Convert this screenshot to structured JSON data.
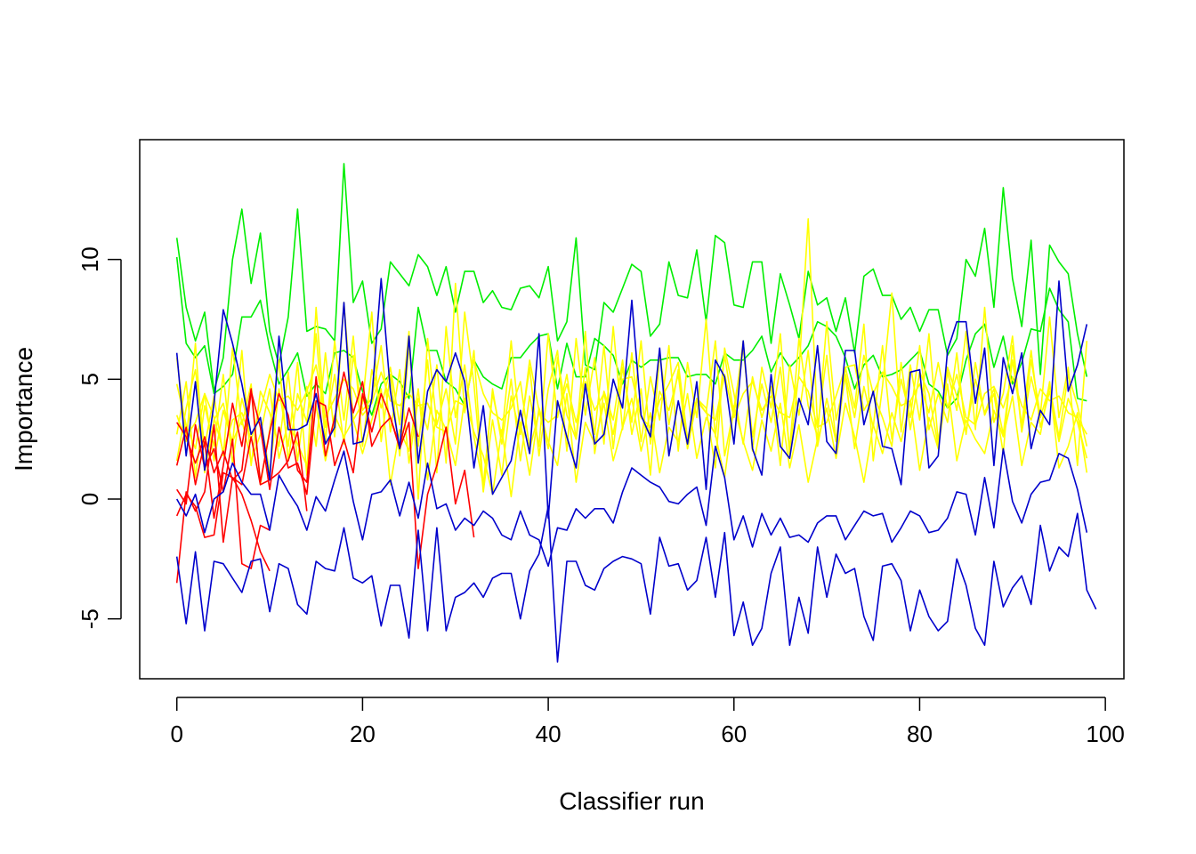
{
  "chart_data": {
    "type": "line",
    "title": "",
    "xlabel": "Classifier run",
    "ylabel": "Importance",
    "xlim": [
      -4,
      102
    ],
    "ylim": [
      -7.5,
      15
    ],
    "x_ticks": [
      0,
      20,
      40,
      60,
      80,
      100
    ],
    "y_ticks": [
      -5,
      0,
      5,
      10
    ],
    "x_tick_labels": [
      "0",
      "20",
      "40",
      "60",
      "80",
      "100"
    ],
    "y_tick_labels": [
      "-5",
      "0",
      "5",
      "10"
    ],
    "grid": false,
    "legend": "none",
    "colors": {
      "green": "#00ee00",
      "yellow": "#ffff00",
      "red": "#ff0000",
      "blue": "#0000cc"
    },
    "series": [
      {
        "color": "green",
        "values": [
          10.9,
          8.0,
          6.6,
          7.8,
          4.5,
          5.9,
          10.0,
          12.1,
          9.0,
          11.1,
          7.0,
          5.6,
          7.6,
          12.1,
          7.0,
          7.2,
          7.1,
          6.6,
          14.0,
          8.2,
          9.1,
          6.5,
          7.1,
          9.9,
          9.4,
          8.9,
          10.2,
          9.7,
          8.5,
          9.7,
          7.8,
          9.5,
          9.5,
          8.2,
          8.7,
          8.0,
          7.9,
          8.8,
          8.9,
          8.4,
          9.7,
          6.6,
          7.4,
          10.9,
          5.6,
          5.4,
          8.2,
          7.8,
          8.8,
          9.8,
          9.5,
          6.8,
          7.3,
          9.9,
          8.5,
          8.4,
          10.4,
          7.4,
          11.0,
          10.7,
          8.1,
          8.0,
          9.9,
          9.9,
          6.5,
          9.4,
          8.1,
          6.7,
          9.5,
          8.1,
          8.4,
          7.0,
          8.4,
          6.1,
          9.3,
          9.6,
          8.5,
          8.5,
          7.5,
          8.0,
          7.0,
          7.9,
          7.9,
          6.0,
          6.7,
          10.0,
          9.3,
          11.3,
          8.0,
          13.0,
          9.2,
          7.2,
          10.8,
          5.2,
          10.6,
          9.9,
          9.4,
          6.9,
          5.1
        ]
      },
      {
        "color": "green",
        "values": [
          10.1,
          6.5,
          5.9,
          6.4,
          4.4,
          4.7,
          5.2,
          7.6,
          7.6,
          8.3,
          6.3,
          4.8,
          5.4,
          6.1,
          4.3,
          4.8,
          4.4,
          6.1,
          6.2,
          5.9,
          4.5,
          3.5,
          4.8,
          5.2,
          4.9,
          4.2,
          8.0,
          6.2,
          6.2,
          4.9,
          4.6,
          3.9,
          5.8,
          5.1,
          4.8,
          4.6,
          5.9,
          5.9,
          6.4,
          6.8,
          6.9,
          4.6,
          6.5,
          5.1,
          5.1,
          6.7,
          6.4,
          6.0,
          4.8,
          5.8,
          5.5,
          5.8,
          5.8,
          5.9,
          5.9,
          5.1,
          5.2,
          5.2,
          4.8,
          6.1,
          5.8,
          5.8,
          6.2,
          6.8,
          5.3,
          6.1,
          5.5,
          5.9,
          6.4,
          7.4,
          7.2,
          6.8,
          5.9,
          4.6,
          5.6,
          6.0,
          5.1,
          5.2,
          5.4,
          5.8,
          6.2,
          4.8,
          4.5,
          3.8,
          4.2,
          5.8,
          6.9,
          7.3,
          5.5,
          6.8,
          4.8,
          5.7,
          7.1,
          7.0,
          8.8,
          7.9,
          7.4,
          4.2,
          4.1
        ]
      },
      {
        "color": "yellow",
        "values": [
          4.8,
          3.1,
          2.1,
          4.4,
          3.4,
          2.0,
          3.3,
          3.6,
          2.5,
          3.7,
          5.2,
          4.1,
          4.3,
          3.7,
          4.5,
          5.6,
          3.4,
          4.2,
          5.0,
          4.6,
          3.5,
          4.0,
          5.3,
          4.1,
          3.9,
          4.4,
          3.9,
          4.0,
          3.0,
          2.8,
          4.1,
          3.9,
          5.8,
          4.4,
          3.6,
          3.3,
          3.8,
          4.9,
          2.1,
          3.6,
          3.2,
          3.5,
          4.8,
          3.2,
          4.9,
          3.7,
          4.4,
          2.7,
          5.0,
          5.1,
          3.4,
          3.0,
          4.1,
          4.8,
          5.7,
          2.5,
          4.2,
          3.6,
          3.3,
          5.2,
          3.4,
          4.4,
          4.9,
          3.7,
          4.3,
          3.6,
          3.4,
          5.1,
          4.5,
          3.0,
          3.2,
          4.3,
          5.5,
          5.6,
          3.7,
          4.4,
          5.3,
          4.7,
          3.9,
          4.1,
          4.8,
          3.6,
          5.7,
          3.8,
          5.2,
          3.4,
          3.1,
          4.4,
          4.7,
          3.8,
          5.1,
          3.9,
          3.3,
          4.6,
          4.1,
          4.3,
          3.6,
          3.4,
          2.7
        ]
      },
      {
        "color": "yellow",
        "values": [
          3.5,
          2.4,
          6.5,
          1.1,
          3.3,
          4.0,
          2.3,
          6.2,
          1.4,
          4.5,
          3.6,
          2.2,
          5.3,
          1.6,
          4.7,
          2.2,
          6.1,
          2.6,
          8.2,
          3.3,
          4.0,
          7.8,
          2.4,
          5.2,
          1.8,
          6.4,
          2.2,
          5.8,
          1.1,
          7.2,
          3.4,
          5.6,
          2.6,
          0.6,
          4.4,
          2.6,
          6.6,
          2.8,
          5.5,
          1.8,
          4.6,
          6.2,
          2.0,
          6.7,
          3.5,
          5.9,
          2.3,
          7.2,
          2.9,
          6.1,
          2.4,
          5.1,
          3.3,
          6.4,
          2.0,
          5.7,
          3.4,
          7.5,
          2.6,
          6.0,
          3.5,
          6.6,
          2.0,
          5.5,
          3.8,
          6.9,
          1.8,
          5.3,
          11.7,
          3.0,
          6.0,
          2.4,
          5.5,
          3.8,
          7.3,
          1.6,
          4.7,
          8.6,
          2.8,
          5.6,
          3.3,
          6.9,
          2.4,
          5.3,
          3.7,
          7.0,
          2.9,
          8.0,
          3.2,
          4.4,
          6.8,
          2.8,
          5.8,
          3.5,
          7.6,
          3.4,
          5.5,
          1.4,
          6.6
        ]
      },
      {
        "color": "yellow",
        "values": [
          2.7,
          4.9,
          0.9,
          3.9,
          2.2,
          5.2,
          1.5,
          4.2,
          2.7,
          3.4,
          1.1,
          4.6,
          2.2,
          5.7,
          1.0,
          8.0,
          3.0,
          5.2,
          2.3,
          6.0,
          3.7,
          4.2,
          6.4,
          2.8,
          5.4,
          1.5,
          4.2,
          2.9,
          5.6,
          1.5,
          9.0,
          3.6,
          6.2,
          0.4,
          4.6,
          2.3,
          5.0,
          1.6,
          4.3,
          2.2,
          6.9,
          3.4,
          5.2,
          2.5,
          7.0,
          1.9,
          4.5,
          3.3,
          5.8,
          2.7,
          4.6,
          1.0,
          6.1,
          3.1,
          5.4,
          2.1,
          4.1,
          3.6,
          6.6,
          1.8,
          3.8,
          6.3,
          2.6,
          4.8,
          3.2,
          5.5,
          2.1,
          6.7,
          3.9,
          2.6,
          7.4,
          3.3,
          5.1,
          2.1,
          4.7,
          3.0,
          6.4,
          2.5,
          5.0,
          3.4,
          6.4,
          2.9,
          4.4,
          3.2,
          6.1,
          2.7,
          5.7,
          3.5,
          4.4,
          1.9,
          6.4,
          2.8,
          5.1,
          3.4,
          4.7,
          2.6,
          5.2,
          3.9,
          2.2
        ]
      },
      {
        "color": "yellow",
        "values": [
          1.6,
          3.8,
          5.4,
          2.2,
          4.3,
          1.8,
          6.3,
          3.1,
          4.8,
          0.6,
          2.9,
          5.8,
          1.6,
          4.4,
          3.2,
          6.9,
          2.4,
          6.6,
          3.3,
          6.8,
          2.2,
          5.4,
          3.8,
          5.5,
          3.1,
          7.0,
          0.0,
          6.7,
          3.1,
          4.6,
          2.3,
          7.8,
          4.8,
          0.3,
          3.3,
          1.0,
          4.3,
          2.7,
          5.8,
          3.7,
          2.1,
          5.9,
          3.5,
          2.5,
          5.5,
          2.7,
          6.4,
          2.1,
          5.5,
          3.2,
          6.6,
          2.3,
          4.5,
          3.7,
          5.2,
          2.1,
          4.2,
          3.8,
          1.3,
          6.3,
          4.4,
          2.3,
          5.1,
          3.4,
          4.7,
          1.4,
          5.6,
          3.5,
          6.2,
          2.2,
          4.2,
          2.4,
          5.2,
          3.4,
          6.0,
          4.4,
          3.4,
          2.2,
          5.7,
          2.9,
          5.3,
          4.4,
          2.2,
          5.5,
          4.3,
          2.8,
          5.0,
          3.6,
          4.6,
          2.7,
          5.8,
          3.1,
          6.2,
          3.0,
          4.5,
          2.4,
          4.2,
          3.2,
          1.7
        ]
      },
      {
        "color": "yellow",
        "values": [
          5.9,
          2.6,
          3.2,
          4.4,
          1.6,
          3.7,
          2.4,
          3.3,
          1.6,
          2.7,
          4.6,
          1.7,
          3.2,
          2.3,
          1.4,
          3.9,
          1.6,
          3.5,
          2.6,
          3.3,
          1.9,
          3.3,
          4.6,
          0.6,
          2.9,
          2.0,
          4.6,
          0.8,
          3.7,
          2.9,
          1.4,
          4.2,
          2.8,
          1.8,
          0.2,
          2.9,
          0.1,
          3.2,
          1.0,
          3.8,
          2.4,
          1.4,
          4.4,
          0.7,
          3.2,
          2.3,
          4.0,
          1.6,
          3.0,
          4.2,
          2.0,
          3.6,
          1.1,
          3.0,
          2.4,
          4.4,
          1.7,
          3.4,
          2.7,
          0.9,
          3.9,
          2.4,
          1.2,
          3.3,
          2.0,
          4.0,
          1.3,
          3.1,
          0.7,
          2.5,
          3.8,
          1.7,
          4.0,
          2.6,
          0.7,
          3.1,
          1.9,
          3.6,
          2.4,
          4.1,
          1.2,
          3.4,
          2.1,
          4.8,
          1.6,
          3.3,
          2.5,
          1.9,
          3.7,
          2.6,
          4.3,
          1.4,
          3.2,
          2.7,
          4.9,
          1.3,
          2.2,
          3.6,
          1.1
        ]
      },
      {
        "color": "red",
        "values": [
          1.4,
          3.0,
          0.6,
          2.4,
          -0.8,
          1.4,
          4.0,
          2.2,
          4.6,
          0.7,
          2.8,
          4.4,
          3.5,
          1.2,
          0.7,
          5.1,
          1.8,
          3.4,
          5.3,
          3.6,
          4.9,
          2.2,
          3.0,
          3.4,
          2.1,
          3.2,
          -2.9,
          0.2,
          1.4,
          3.0,
          -0.2,
          1.2,
          -1.6
        ]
      },
      {
        "color": "red",
        "values": [
          3.2,
          2.6,
          1.5,
          2.6,
          1.1,
          2.0,
          0.8,
          1.2,
          4.5,
          3.0,
          0.4,
          3.0,
          1.3,
          1.5,
          0.2,
          4.1,
          3.9,
          1.4,
          2.5,
          1.1,
          4.4,
          2.8,
          4.4,
          3.4,
          2.2,
          3.8,
          2.6
        ]
      },
      {
        "color": "red",
        "values": [
          -0.7,
          0.2,
          -0.3,
          -1.6,
          -1.5,
          1.1,
          0.9,
          0.6,
          2.6,
          0.6,
          0.8,
          1.1,
          1.6,
          2.8,
          -0.5
        ]
      },
      {
        "color": "red",
        "values": [
          -3.5,
          0.3,
          -0.5,
          0.3,
          3.1,
          -1.8,
          0.9,
          0.2,
          -0.9,
          -2.2,
          -3.0
        ]
      },
      {
        "color": "red",
        "values": [
          0.4,
          -0.2,
          3.1,
          1.3,
          2.1,
          0.3,
          2.5,
          -2.7,
          -2.9,
          -1.1,
          -1.3
        ]
      },
      {
        "color": "blue",
        "values": [
          6.1,
          1.8,
          4.9,
          1.2,
          4.0,
          7.9,
          6.5,
          4.8,
          2.7,
          3.4,
          0.8,
          6.8,
          2.9,
          2.9,
          3.1,
          4.4,
          2.3,
          3.0,
          8.2,
          2.3,
          2.4,
          4.2,
          9.2,
          4.5,
          2.1,
          6.8,
          1.5,
          4.5,
          5.4,
          4.9,
          6.1,
          4.9,
          1.3,
          3.9,
          0.2,
          0.9,
          1.6,
          3.7,
          1.9,
          6.9,
          -0.8,
          4.1,
          2.6,
          1.3,
          4.8,
          2.3,
          2.7,
          5.0,
          3.8,
          8.3,
          3.5,
          2.6,
          6.3,
          1.8,
          4.1,
          2.3,
          4.9,
          0.4,
          5.8,
          5.1,
          2.3,
          6.6,
          2.1,
          1.0,
          5.2,
          2.2,
          1.7,
          4.2,
          3.1,
          6.4,
          2.4,
          1.9,
          6.2,
          6.2,
          3.1,
          4.5,
          2.2,
          2.1,
          0.6,
          5.3,
          5.4,
          1.3,
          1.8,
          6.2,
          7.4,
          7.4,
          4.0,
          6.3,
          1.4,
          5.9,
          4.4,
          6.1,
          2.1,
          3.7,
          3.1,
          9.1,
          4.5,
          5.6,
          7.3
        ]
      },
      {
        "color": "blue",
        "values": [
          0.0,
          -0.7,
          0.2,
          -1.4,
          0.0,
          0.3,
          1.5,
          0.7,
          0.2,
          0.2,
          -1.3,
          1.0,
          0.3,
          -0.3,
          -1.3,
          0.1,
          -0.5,
          0.8,
          2.0,
          -0.1,
          -1.7,
          0.2,
          0.3,
          0.8,
          -0.7,
          0.7,
          -0.8,
          1.5,
          -0.4,
          -0.2,
          -1.3,
          -0.8,
          -1.1,
          -0.5,
          -0.8,
          -1.5,
          -1.7,
          -0.5,
          -1.5,
          -1.7,
          -2.8,
          -1.2,
          -1.3,
          -0.4,
          -0.8,
          -0.4,
          -0.4,
          -1.0,
          0.3,
          1.3,
          1.0,
          0.7,
          0.5,
          -0.1,
          -0.2,
          0.2,
          0.5,
          -1.1,
          2.2,
          0.9,
          -1.7,
          -0.7,
          -2.0,
          -0.6,
          -1.5,
          -0.8,
          -1.6,
          -1.5,
          -1.8,
          -1.0,
          -0.7,
          -0.7,
          -1.7,
          -1.1,
          -0.5,
          -0.7,
          -0.6,
          -1.8,
          -1.2,
          -0.5,
          -0.7,
          -1.4,
          -1.3,
          -0.8,
          0.3,
          0.2,
          -1.5,
          0.9,
          -1.2,
          2.1,
          -0.1,
          -1.0,
          0.2,
          0.7,
          0.8,
          1.9,
          1.7,
          0.4,
          -1.4
        ]
      },
      {
        "color": "blue",
        "values": [
          -2.4,
          -5.2,
          -2.2,
          -5.5,
          -2.6,
          -2.7,
          -3.3,
          -3.9,
          -2.6,
          -2.5,
          -4.7,
          -2.7,
          -2.9,
          -4.4,
          -4.8,
          -2.6,
          -2.9,
          -3.0,
          -1.2,
          -3.3,
          -3.5,
          -3.2,
          -5.3,
          -3.6,
          -3.6,
          -5.8,
          -1.3,
          -5.5,
          -1.2,
          -5.5,
          -4.1,
          -3.9,
          -3.5,
          -4.1,
          -3.3,
          -3.1,
          -3.1,
          -5.0,
          -3.0,
          -2.3,
          -0.3,
          -6.8,
          -2.6,
          -2.6,
          -3.6,
          -3.8,
          -2.9,
          -2.6,
          -2.4,
          -2.5,
          -2.7,
          -4.8,
          -1.6,
          -2.8,
          -2.7,
          -3.8,
          -3.4,
          -1.6,
          -4.1,
          -1.4,
          -5.7,
          -4.3,
          -6.1,
          -5.4,
          -3.1,
          -2.0,
          -6.1,
          -4.1,
          -5.6,
          -2.0,
          -4.1,
          -2.3,
          -3.1,
          -2.9,
          -4.9,
          -5.9,
          -2.8,
          -2.7,
          -3.4,
          -5.5,
          -3.8,
          -4.9,
          -5.5,
          -5.1,
          -2.5,
          -3.6,
          -5.4,
          -6.1,
          -2.6,
          -4.5,
          -3.7,
          -3.2,
          -4.4,
          -1.1,
          -3.0,
          -2.0,
          -2.4,
          -0.6,
          -3.8,
          -4.6
        ]
      }
    ]
  }
}
